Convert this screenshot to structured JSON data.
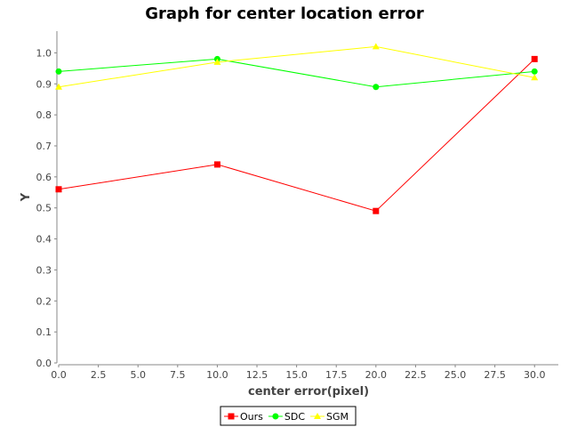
{
  "chart_data": {
    "type": "line",
    "title": "Graph for center location error",
    "xlabel": "center error(pixel)",
    "ylabel": "Y",
    "xlim": [
      0,
      31.5
    ],
    "ylim": [
      0,
      1.07
    ],
    "x_ticks": [
      "0.0",
      "2.5",
      "5.0",
      "7.5",
      "10.0",
      "12.5",
      "15.0",
      "17.5",
      "20.0",
      "22.5",
      "25.0",
      "27.5",
      "30.0"
    ],
    "y_ticks": [
      "0.0",
      "0.1",
      "0.2",
      "0.3",
      "0.4",
      "0.5",
      "0.6",
      "0.7",
      "0.8",
      "0.9",
      "1.0"
    ],
    "grid": false,
    "legend_position": "bottom",
    "series": [
      {
        "name": "Ours",
        "color": "#ff0000",
        "marker": "square",
        "x": [
          0,
          10,
          20,
          30
        ],
        "y": [
          0.56,
          0.64,
          0.49,
          0.98
        ]
      },
      {
        "name": "SDC",
        "color": "#00ff00",
        "marker": "circle",
        "x": [
          0,
          10,
          20,
          30
        ],
        "y": [
          0.94,
          0.98,
          0.89,
          0.94
        ]
      },
      {
        "name": "SGM",
        "color": "#ffff00",
        "marker": "triangle",
        "x": [
          0,
          10,
          20,
          30
        ],
        "y": [
          0.89,
          0.97,
          1.02,
          0.92
        ]
      }
    ]
  }
}
